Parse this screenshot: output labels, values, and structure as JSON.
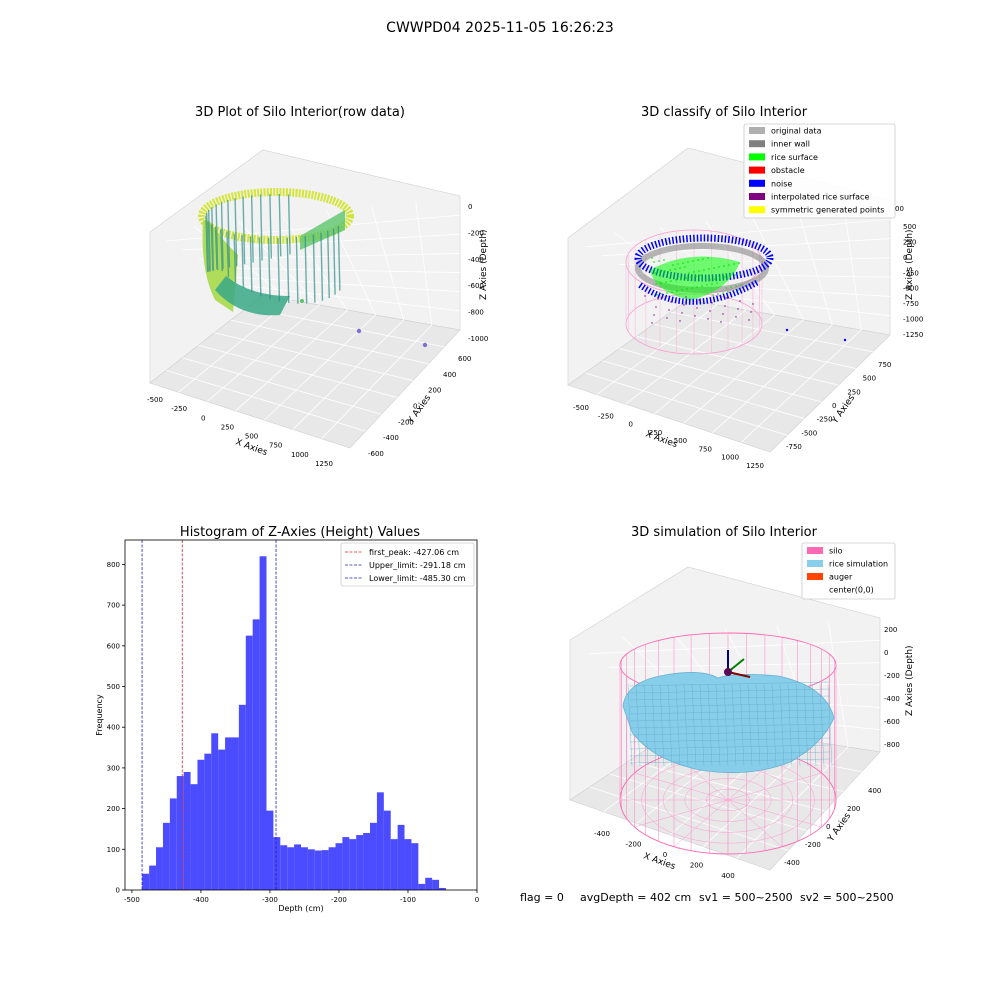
{
  "suptitle": "CWWPD04 2025-11-05 16:26:23",
  "footer": {
    "flag": "flag = 0",
    "avg_depth": "avgDepth = 402 cm",
    "sv1": "sv1 = 500~2500",
    "sv2": "sv2 = 500~2500"
  },
  "colors": {
    "hist_bar": "#4b4bff",
    "first_peak": "#d62728",
    "limit_line": "#1f1fbf",
    "silo": "#ff69b4",
    "rice_sim": "#87ceeb",
    "auger": "#ff4500",
    "inner_wall": "#808080",
    "rice_surface": "#00ff00",
    "obstacle": "#ff0000",
    "noise": "#0000ff",
    "interp": "#800080",
    "symmetric": "#ffff00",
    "original": "#b0b0b0"
  },
  "chart_data": [
    {
      "type": "scatter",
      "title": "3D Plot of Silo Interior(row data)",
      "xlabel": "X Axies",
      "ylabel": "Y Axies",
      "zlabel": "Z Axies (Depth)",
      "x_ticks": [
        "-500",
        "-250",
        "0",
        "250",
        "500",
        "750",
        "1000",
        "1250"
      ],
      "y_ticks": [
        "-600",
        "-400",
        "-200",
        "0",
        "200",
        "400",
        "600"
      ],
      "z_ticks": [
        "0",
        "-200",
        "-400",
        "-600",
        "-800",
        "-1000"
      ]
    },
    {
      "type": "scatter",
      "title": "3D classify of Silo Interior",
      "xlabel": "X Axies",
      "ylabel": "Y Axies",
      "zlabel": "Z Axies (Depth)",
      "x_ticks": [
        "-500",
        "-250",
        "0",
        "250",
        "500",
        "750",
        "1000",
        "1250"
      ],
      "y_ticks": [
        "-750",
        "-500",
        "-250",
        "0",
        "250",
        "500",
        "750"
      ],
      "z_ticks": [
        "500",
        "250",
        "0",
        "-250",
        "-500",
        "-750",
        "-1000",
        "-1250"
      ],
      "z_partial": "00",
      "legend": [
        "original data",
        "inner wall",
        "rice surface",
        "obstacle",
        "noise",
        "interpolated rice surface",
        "symmetric generated points"
      ],
      "legend_loc": "top-right"
    },
    {
      "type": "bar",
      "title": "Histogram of Z-Axies (Height) Values",
      "xlabel": "Depth (cm)",
      "ylabel": "Frequency",
      "xlim": [
        -510,
        0
      ],
      "ylim": [
        0,
        860
      ],
      "x_ticks": [
        -500,
        -400,
        -300,
        -200,
        -100,
        0
      ],
      "y_ticks": [
        0,
        100,
        200,
        300,
        400,
        500,
        600,
        700,
        800
      ],
      "bin_start": -485,
      "bin_width": 10,
      "values": [
        40,
        60,
        105,
        165,
        225,
        280,
        290,
        260,
        320,
        335,
        385,
        345,
        375,
        375,
        455,
        625,
        665,
        820,
        195,
        130,
        110,
        105,
        112,
        105,
        100,
        97,
        98,
        105,
        115,
        130,
        125,
        135,
        140,
        165,
        240,
        195,
        125,
        160,
        125,
        115,
        15,
        30,
        25,
        5
      ],
      "vlines": [
        {
          "label": "first_peak: -427.06 cm",
          "x": -427.06,
          "color": "#d62728"
        },
        {
          "label": "Upper_limit: -291.18 cm",
          "x": -291.18,
          "color": "#1f1fbf"
        },
        {
          "label": "Lower_limit: -485.30 cm",
          "x": -485.3,
          "color": "#1f1fbf"
        }
      ],
      "legend_loc": "top-right"
    },
    {
      "type": "scatter",
      "title": "3D simulation of Silo Interior",
      "xlabel": "X Axies",
      "ylabel": "Y Axies",
      "zlabel": "Z Axies (Depth)",
      "x_ticks": [
        "-400",
        "-200",
        "0",
        "200",
        "400"
      ],
      "y_ticks": [
        "-400",
        "-200",
        "0",
        "200",
        "400"
      ],
      "z_ticks": [
        "200",
        "0",
        "-200",
        "-400",
        "-600",
        "-800"
      ],
      "legend": [
        "silo",
        "rice simulation",
        "auger",
        "center(0,0)"
      ],
      "legend_loc": "top-right"
    }
  ]
}
